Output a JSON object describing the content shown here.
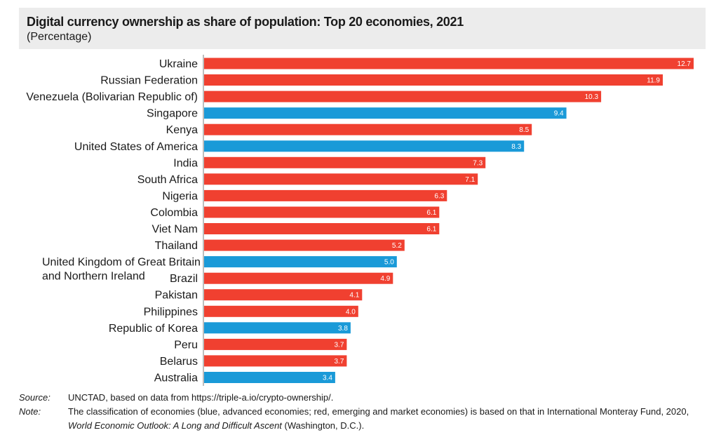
{
  "header": {
    "title": "Digital currency ownership as share of population: Top 20 economies, 2021",
    "subtitle": "(Percentage)"
  },
  "chart_data": {
    "type": "bar",
    "orientation": "horizontal",
    "title": "Digital currency ownership as share of population: Top 20 economies, 2021",
    "subtitle": "(Percentage)",
    "xlim": [
      0,
      12.7
    ],
    "grid": false,
    "colors": {
      "advanced": "#1a9ad8",
      "emerging": "#f04030"
    },
    "bars": [
      {
        "label": "Ukraine",
        "value": 12.7,
        "value_label": "12.7",
        "group": "emerging"
      },
      {
        "label": "Russian Federation",
        "value": 11.9,
        "value_label": "11.9",
        "group": "emerging"
      },
      {
        "label": "Venezuela (Bolivarian Republic of)",
        "value": 10.3,
        "value_label": "10.3",
        "group": "emerging"
      },
      {
        "label": "Singapore",
        "value": 9.4,
        "value_label": "9.4",
        "group": "advanced"
      },
      {
        "label": "Kenya",
        "value": 8.5,
        "value_label": "8.5",
        "group": "emerging"
      },
      {
        "label": "United States of America",
        "value": 8.3,
        "value_label": "8.3",
        "group": "advanced"
      },
      {
        "label": "India",
        "value": 7.3,
        "value_label": "7.3",
        "group": "emerging"
      },
      {
        "label": "South Africa",
        "value": 7.1,
        "value_label": "7.1",
        "group": "emerging"
      },
      {
        "label": "Nigeria",
        "value": 6.3,
        "value_label": "6.3",
        "group": "emerging"
      },
      {
        "label": "Colombia",
        "value": 6.1,
        "value_label": "6.1",
        "group": "emerging"
      },
      {
        "label": "Viet Nam",
        "value": 6.1,
        "value_label": "6.1",
        "group": "emerging"
      },
      {
        "label": "Thailand",
        "value": 5.2,
        "value_label": "5.2",
        "group": "emerging"
      },
      {
        "label": "United Kingdom of Great Britain and Northern Ireland",
        "label_lines": [
          "United Kingdom of Great Britain",
          "and Northern Ireland"
        ],
        "value": 5.0,
        "value_label": "5.0",
        "group": "advanced"
      },
      {
        "label": "Brazil",
        "value": 4.9,
        "value_label": "4.9",
        "group": "emerging"
      },
      {
        "label": "Pakistan",
        "value": 4.1,
        "value_label": "4.1",
        "group": "emerging"
      },
      {
        "label": "Philippines",
        "value": 4.0,
        "value_label": "4.0",
        "group": "emerging"
      },
      {
        "label": "Republic of Korea",
        "value": 3.8,
        "value_label": "3.8",
        "group": "advanced"
      },
      {
        "label": "Peru",
        "value": 3.7,
        "value_label": "3.7",
        "group": "emerging"
      },
      {
        "label": "Belarus",
        "value": 3.7,
        "value_label": "3.7",
        "group": "emerging"
      },
      {
        "label": "Australia",
        "value": 3.4,
        "value_label": "3.4",
        "group": "advanced"
      }
    ]
  },
  "notes": {
    "source_key": "Source:",
    "source_text": "UNCTAD, based on data from https://triple-a.io/crypto-ownership/.",
    "note_key": "Note:",
    "note_line1": "The classification of economies (blue, advanced economies; red, emerging and market economies) is based on that in International Monteray Fund, 2020,",
    "note_line2_italic": "World Economic Outlook: A Long and Difficult Ascent",
    "note_line2_rest": " (Washington, D.C.)."
  }
}
